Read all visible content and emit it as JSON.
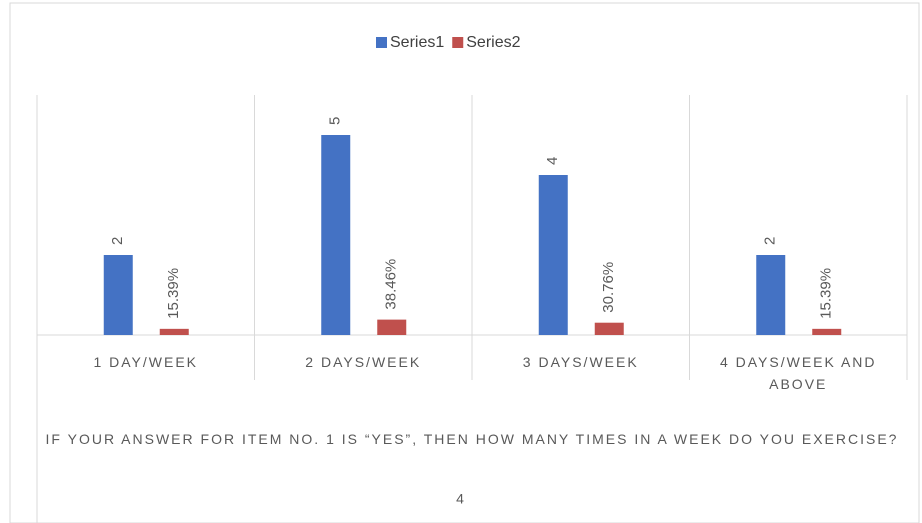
{
  "chart_data": {
    "type": "bar",
    "categories": [
      "1 DAY/WEEK",
      "2 DAYS/WEEK",
      "3 DAYS/WEEK",
      "4 DAYS/WEEK AND ABOVE"
    ],
    "series": [
      {
        "name": "Series1",
        "color": "#4472c4",
        "values": [
          2,
          5,
          4,
          2
        ]
      },
      {
        "name": "Series2",
        "color": "#c0504d",
        "values": [
          0.1539,
          0.3846,
          0.3076,
          0.1539
        ],
        "value_labels": [
          "15.39%",
          "38.46%",
          "30.76%",
          "15.39%"
        ]
      }
    ],
    "x_label": "IF YOUR ANSWER FOR ITEM NO. 1 IS “YES”, THEN HOW MANY TIMES IN A WEEK DO YOU EXERCISE?",
    "caption": "4",
    "ylim": [
      0,
      6
    ],
    "legend": "top"
  }
}
